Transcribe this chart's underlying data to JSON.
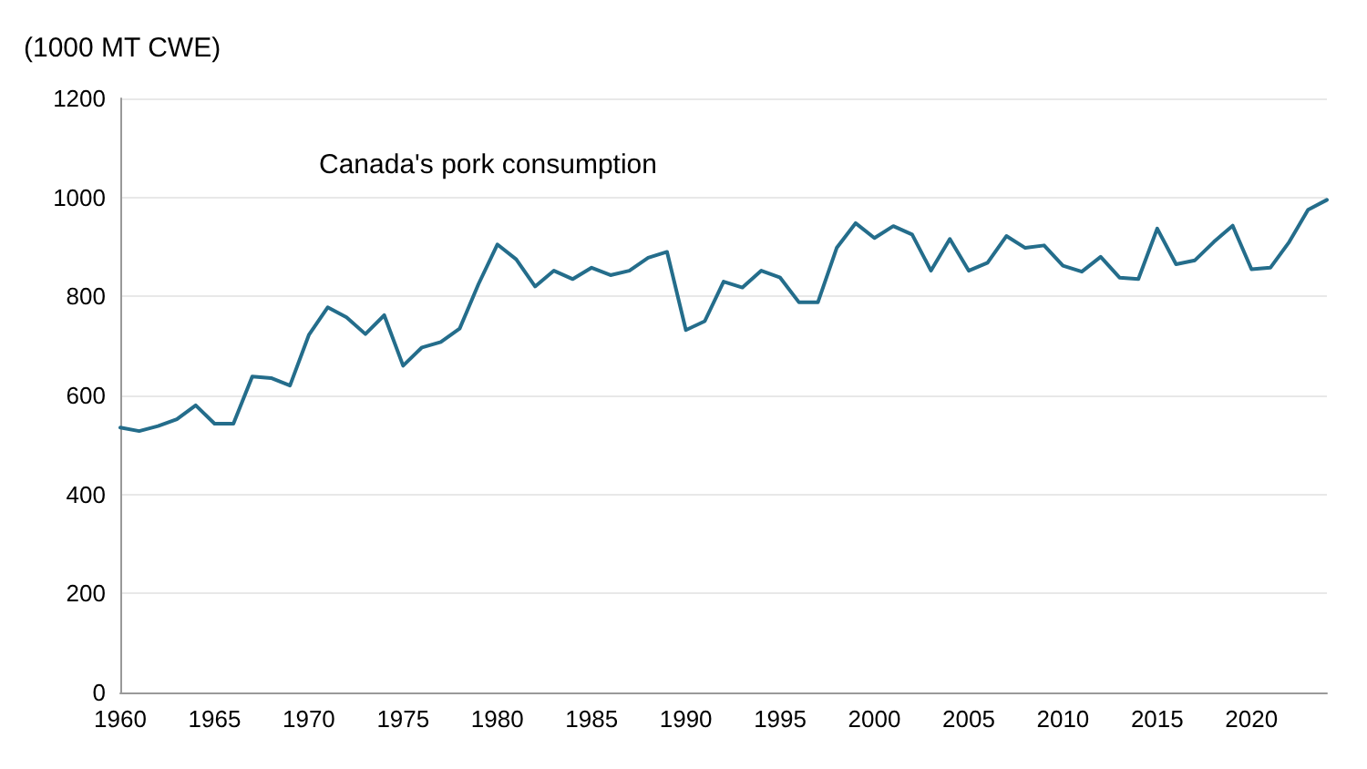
{
  "chart_data": {
    "type": "line",
    "title": "Canada's pork consumption",
    "ylabel": "(1000 MT CWE)",
    "x": [
      1960,
      1961,
      1962,
      1963,
      1964,
      1965,
      1966,
      1967,
      1968,
      1969,
      1970,
      1971,
      1972,
      1973,
      1974,
      1975,
      1976,
      1977,
      1978,
      1979,
      1980,
      1981,
      1982,
      1983,
      1984,
      1985,
      1986,
      1987,
      1988,
      1989,
      1990,
      1991,
      1992,
      1993,
      1994,
      1995,
      1996,
      1997,
      1998,
      1999,
      2000,
      2001,
      2002,
      2003,
      2004,
      2005,
      2006,
      2007,
      2008,
      2009,
      2010,
      2011,
      2012,
      2013,
      2014,
      2015,
      2016,
      2017,
      2018,
      2019,
      2020,
      2021,
      2022,
      2023,
      2024
    ],
    "series": [
      {
        "color": "#246d8b",
        "values": [
          535,
          528,
          538,
          552,
          580,
          543,
          543,
          638,
          635,
          620,
          722,
          778,
          758,
          724,
          762,
          660,
          697,
          708,
          735,
          825,
          905,
          875,
          820,
          852,
          835,
          858,
          843,
          852,
          878,
          890,
          732,
          750,
          830,
          818,
          852,
          838,
          788,
          788,
          898,
          948,
          918,
          942,
          925,
          852,
          916,
          852,
          868,
          922,
          898,
          903,
          862,
          850,
          880,
          838,
          835,
          937,
          865,
          873,
          910,
          943,
          855,
          858,
          910,
          975,
          995
        ]
      }
    ],
    "xlim": [
      1960,
      2024
    ],
    "xticks": [
      1960,
      1965,
      1970,
      1975,
      1980,
      1985,
      1990,
      1995,
      2000,
      2005,
      2010,
      2015,
      2020
    ],
    "ylim": [
      0,
      1200
    ],
    "yticks": [
      0,
      200,
      400,
      600,
      800,
      1000,
      1200
    ],
    "grid": "y",
    "marker": "none",
    "line_style": "solid"
  }
}
